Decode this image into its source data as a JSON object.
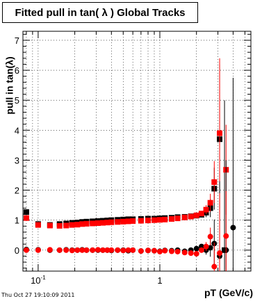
{
  "title": "Fitted pull in tan( λ )  Global Tracks",
  "timestamp": "Thu Oct 27 19:10:09 2011",
  "chart_data": {
    "type": "scatter",
    "title": "Fitted pull in tan( λ )  Global Tracks",
    "xlabel": "pT (GeV/c)",
    "ylabel": "pull in tan(λ)",
    "xscale": "log",
    "xlim": [
      0.075,
      5.6
    ],
    "ylim": [
      -0.7,
      7.3
    ],
    "xticks": [
      {
        "v": 0.1,
        "label": "10",
        "sup": "-1"
      },
      {
        "v": 1,
        "label": "1",
        "sup": ""
      }
    ],
    "yticks": [
      {
        "v": 0,
        "label": "0"
      },
      {
        "v": 1,
        "label": "1"
      },
      {
        "v": 2,
        "label": "2"
      },
      {
        "v": 3,
        "label": "3"
      },
      {
        "v": 4,
        "label": "4"
      },
      {
        "v": 5,
        "label": "5"
      },
      {
        "v": 6,
        "label": "6"
      },
      {
        "v": 7,
        "label": "7"
      }
    ],
    "grid": true,
    "series": [
      {
        "color": "#000000",
        "marker": "square",
        "x": [
          0.08,
          0.1,
          0.125,
          0.15,
          0.17,
          0.19,
          0.21,
          0.23,
          0.25,
          0.28,
          0.31,
          0.34,
          0.37,
          0.4,
          0.45,
          0.5,
          0.55,
          0.6,
          0.7,
          0.8,
          0.9,
          1.0,
          1.1,
          1.25,
          1.4,
          1.6,
          1.8,
          2.0,
          2.2,
          2.4,
          2.6,
          2.8,
          3.1,
          3.4
        ],
        "y": [
          1.27,
          0.87,
          0.84,
          0.87,
          0.89,
          0.91,
          0.92,
          0.94,
          0.95,
          0.96,
          0.97,
          0.98,
          0.99,
          1.0,
          1.01,
          1.02,
          1.03,
          1.03,
          1.04,
          1.05,
          1.05,
          1.06,
          1.07,
          1.08,
          1.1,
          1.11,
          1.13,
          1.15,
          1.18,
          1.25,
          1.4,
          2.05,
          3.7,
          0.0
        ],
        "err": [
          0.04,
          0.02,
          0.02,
          0.02,
          0.02,
          0.02,
          0.02,
          0.02,
          0.02,
          0.02,
          0.02,
          0.02,
          0.02,
          0.02,
          0.02,
          0.02,
          0.02,
          0.02,
          0.02,
          0.02,
          0.03,
          0.03,
          0.03,
          0.03,
          0.04,
          0.04,
          0.05,
          0.06,
          0.08,
          0.15,
          0.3,
          0.7,
          2.5,
          5.0
        ]
      },
      {
        "color": "#ff0000",
        "marker": "square",
        "x": [
          0.08,
          0.1,
          0.125,
          0.15,
          0.17,
          0.19,
          0.21,
          0.23,
          0.25,
          0.28,
          0.31,
          0.34,
          0.37,
          0.4,
          0.45,
          0.5,
          0.55,
          0.6,
          0.7,
          0.8,
          0.9,
          1.0,
          1.1,
          1.25,
          1.4,
          1.6,
          1.8,
          2.0,
          2.2,
          2.4,
          2.6,
          2.8,
          3.1,
          3.5
        ],
        "y": [
          1.07,
          0.84,
          0.82,
          0.81,
          0.82,
          0.84,
          0.85,
          0.87,
          0.88,
          0.89,
          0.9,
          0.91,
          0.92,
          0.93,
          0.94,
          0.95,
          0.96,
          0.97,
          0.98,
          0.99,
          1.0,
          1.01,
          1.02,
          1.04,
          1.06,
          1.09,
          1.12,
          1.16,
          1.22,
          1.35,
          1.58,
          2.27,
          3.9,
          2.68
        ],
        "err": [
          0.04,
          0.02,
          0.02,
          0.02,
          0.02,
          0.02,
          0.02,
          0.02,
          0.02,
          0.02,
          0.02,
          0.02,
          0.02,
          0.02,
          0.02,
          0.02,
          0.02,
          0.02,
          0.02,
          0.02,
          0.03,
          0.03,
          0.03,
          0.03,
          0.04,
          0.04,
          0.05,
          0.06,
          0.08,
          0.15,
          0.3,
          0.7,
          2.5,
          1.5
        ]
      },
      {
        "color": "#000000",
        "marker": "circle",
        "x": [
          0.08,
          0.1,
          0.125,
          0.15,
          0.17,
          0.19,
          0.21,
          0.23,
          0.25,
          0.28,
          0.31,
          0.34,
          0.37,
          0.4,
          0.45,
          0.5,
          0.55,
          0.6,
          0.7,
          0.8,
          0.9,
          1.0,
          1.1,
          1.25,
          1.4,
          1.6,
          1.8,
          2.0,
          2.2,
          2.4,
          2.6,
          2.8,
          3.1,
          3.5,
          4.0
        ],
        "y": [
          0.02,
          0.01,
          0.0,
          0.0,
          0.01,
          0.0,
          0.0,
          0.01,
          0.0,
          0.0,
          0.0,
          0.0,
          0.0,
          -0.01,
          0.0,
          0.0,
          -0.02,
          0.0,
          -0.03,
          -0.01,
          -0.02,
          -0.04,
          -0.01,
          -0.02,
          0.0,
          -0.04,
          0.0,
          0.05,
          0.12,
          0.0,
          0.08,
          0.22,
          -0.2,
          0.0,
          0.75
        ],
        "err": [
          0.03,
          0.02,
          0.02,
          0.02,
          0.02,
          0.02,
          0.02,
          0.02,
          0.02,
          0.02,
          0.02,
          0.02,
          0.02,
          0.02,
          0.02,
          0.02,
          0.02,
          0.02,
          0.02,
          0.02,
          0.03,
          0.03,
          0.03,
          0.03,
          0.04,
          0.04,
          0.05,
          0.06,
          0.08,
          0.15,
          0.3,
          0.8,
          2.5,
          3.0,
          5.0
        ]
      },
      {
        "color": "#ff0000",
        "marker": "circle",
        "x": [
          0.08,
          0.1,
          0.125,
          0.15,
          0.17,
          0.19,
          0.21,
          0.23,
          0.25,
          0.28,
          0.31,
          0.34,
          0.37,
          0.4,
          0.45,
          0.5,
          0.55,
          0.6,
          0.7,
          0.8,
          0.9,
          1.0,
          1.1,
          1.25,
          1.4,
          1.6,
          1.8,
          2.0,
          2.2,
          2.4,
          2.6,
          2.8,
          3.1,
          3.5
        ],
        "y": [
          0.0,
          0.0,
          0.01,
          0.0,
          0.0,
          -0.01,
          0.0,
          0.0,
          0.0,
          0.0,
          0.01,
          0.0,
          0.0,
          0.0,
          0.0,
          -0.01,
          0.0,
          0.0,
          -0.03,
          -0.01,
          -0.02,
          -0.05,
          -0.02,
          -0.04,
          -0.05,
          -0.08,
          -0.1,
          -0.12,
          0.0,
          0.12,
          0.45,
          -0.55,
          -0.1,
          0.47
        ],
        "err": [
          0.03,
          0.02,
          0.02,
          0.02,
          0.02,
          0.02,
          0.02,
          0.02,
          0.02,
          0.02,
          0.02,
          0.02,
          0.02,
          0.02,
          0.02,
          0.02,
          0.02,
          0.02,
          0.02,
          0.02,
          0.03,
          0.03,
          0.03,
          0.03,
          0.04,
          0.04,
          0.05,
          0.06,
          0.08,
          0.15,
          0.3,
          0.8,
          2.0,
          1.5
        ]
      }
    ]
  }
}
